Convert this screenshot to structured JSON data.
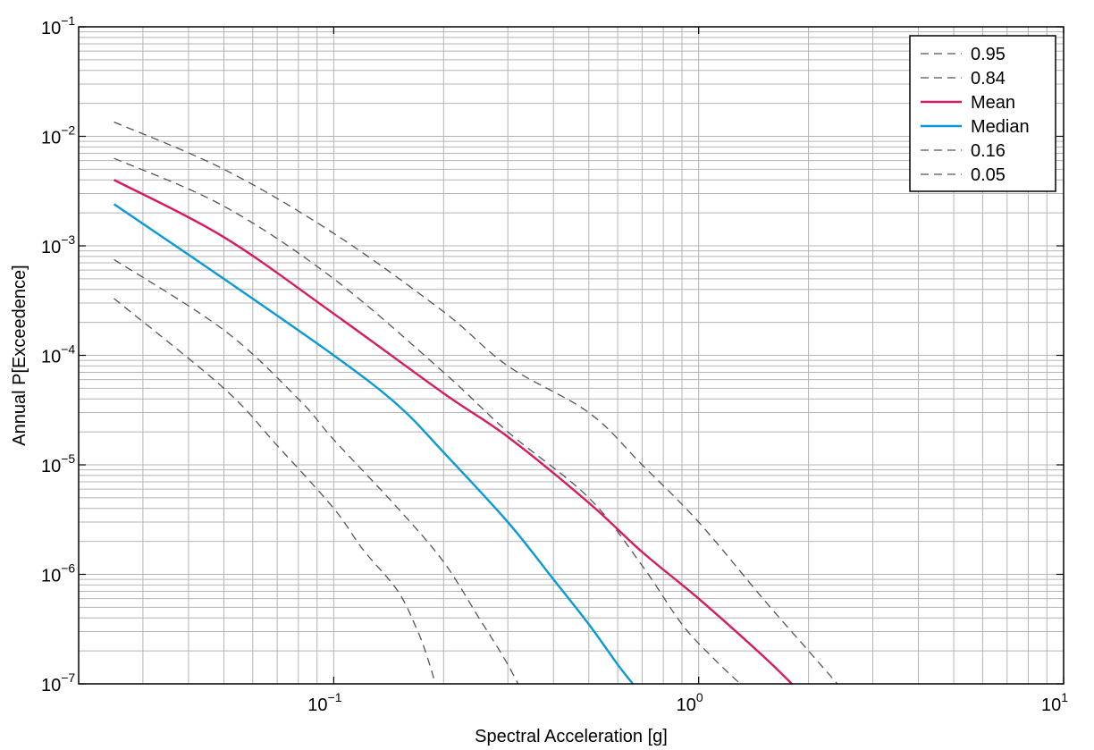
{
  "chart_data": {
    "type": "line",
    "xscale": "log",
    "yscale": "log",
    "xlim": [
      0.02,
      10
    ],
    "ylim": [
      1e-07,
      0.1
    ],
    "xlabel": "Spectral Acceleration [g]",
    "ylabel": "Annual P[Exceedence]",
    "grid": true,
    "legend_position": "top-right",
    "x_ticks": [
      {
        "base": "10",
        "exp": "−1",
        "value": 0.1
      },
      {
        "base": "10",
        "exp": "0",
        "value": 1
      },
      {
        "base": "10",
        "exp": "1",
        "value": 10
      }
    ],
    "y_ticks": [
      {
        "base": "10",
        "exp": "−7",
        "value": 1e-07
      },
      {
        "base": "10",
        "exp": "−6",
        "value": 1e-06
      },
      {
        "base": "10",
        "exp": "−5",
        "value": 1e-05
      },
      {
        "base": "10",
        "exp": "−4",
        "value": 0.0001
      },
      {
        "base": "10",
        "exp": "−3",
        "value": 0.001
      },
      {
        "base": "10",
        "exp": "−2",
        "value": 0.01
      },
      {
        "base": "10",
        "exp": "−1",
        "value": 0.1
      }
    ],
    "series": [
      {
        "name": "0.95",
        "color": "#555555",
        "style": "dashed",
        "x": [
          0.025,
          0.05,
          0.1,
          0.2,
          0.3,
          0.5,
          0.7,
          1.0,
          1.5,
          2.0,
          2.4
        ],
        "y": [
          0.0135,
          0.005,
          0.0013,
          0.00025,
          8e-05,
          3e-05,
          1e-05,
          3e-06,
          6e-07,
          2e-07,
          1e-07
        ]
      },
      {
        "name": "0.84",
        "color": "#555555",
        "style": "dashed",
        "x": [
          0.025,
          0.05,
          0.1,
          0.2,
          0.3,
          0.5,
          0.7,
          0.9,
          1.1,
          1.3
        ],
        "y": [
          0.0063,
          0.0023,
          0.0005,
          7e-05,
          2e-05,
          5e-06,
          1.2e-06,
          3.5e-07,
          1.7e-07,
          1e-07
        ]
      },
      {
        "name": "Mean",
        "color": "#d81b60",
        "style": "solid",
        "x": [
          0.025,
          0.05,
          0.1,
          0.2,
          0.3,
          0.5,
          0.7,
          1.0,
          1.5,
          1.8
        ],
        "y": [
          0.004,
          0.0012,
          0.00024,
          4.5e-05,
          1.8e-05,
          4.5e-06,
          1.6e-06,
          6e-07,
          1.8e-07,
          1e-07
        ]
      },
      {
        "name": "Median",
        "color": "#0a9ad8",
        "style": "solid",
        "x": [
          0.025,
          0.05,
          0.1,
          0.15,
          0.2,
          0.3,
          0.4,
          0.5,
          0.6,
          0.66
        ],
        "y": [
          0.0024,
          0.0005,
          0.0001,
          3.5e-05,
          1.3e-05,
          3e-06,
          9e-07,
          3.5e-07,
          1.5e-07,
          1e-07
        ]
      },
      {
        "name": "0.16",
        "color": "#555555",
        "style": "dashed",
        "x": [
          0.025,
          0.05,
          0.08,
          0.1,
          0.15,
          0.2,
          0.25,
          0.28,
          0.3,
          0.32
        ],
        "y": [
          0.00075,
          0.00017,
          4e-05,
          1.7e-05,
          4e-06,
          1.3e-06,
          4e-07,
          2.2e-07,
          1.5e-07,
          1e-07
        ]
      },
      {
        "name": "0.05",
        "color": "#555555",
        "style": "dashed",
        "x": [
          0.025,
          0.05,
          0.07,
          0.1,
          0.12,
          0.15,
          0.17,
          0.18,
          0.19
        ],
        "y": [
          0.00033,
          5e-05,
          1.5e-05,
          4e-06,
          1.7e-06,
          7e-07,
          3e-07,
          1.8e-07,
          1e-07
        ]
      }
    ]
  }
}
